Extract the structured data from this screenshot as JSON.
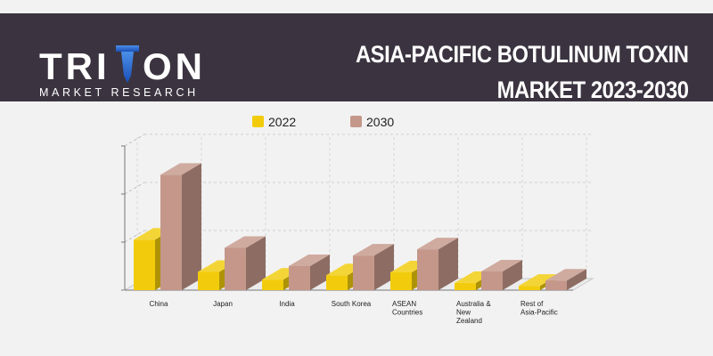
{
  "header": {
    "logo_top": "TRITON",
    "logo_bottom": "MARKET RESEARCH",
    "title_line1": "ASIA-PACIFIC BOTULINUM TOXIN",
    "title_line2": "MARKET 2023-2030",
    "background": "#3b3440"
  },
  "chart_data": {
    "type": "bar",
    "style": "3d-clustered",
    "categories": [
      "China",
      "Japan",
      "India",
      "South Korea",
      "ASEAN Countries",
      "Australia & New Zealand",
      "Rest of Asia-Pacific"
    ],
    "category_lines": [
      [
        "China"
      ],
      [
        "Japan"
      ],
      [
        "India"
      ],
      [
        "South Korea"
      ],
      [
        "ASEAN",
        "Countries"
      ],
      [
        "Australia &",
        "New",
        "Zealand"
      ],
      [
        "Rest of",
        "Asia-Pacific"
      ]
    ],
    "series": [
      {
        "name": "2022",
        "color": "#f2cc0c",
        "values": [
          1.05,
          0.38,
          0.22,
          0.31,
          0.37,
          0.15,
          0.09
        ]
      },
      {
        "name": "2030",
        "color": "#c4978a",
        "values": [
          2.4,
          0.88,
          0.5,
          0.72,
          0.85,
          0.39,
          0.2
        ]
      }
    ],
    "ylim": [
      0,
      3
    ],
    "y_tick_labels_shown": false,
    "grid": true,
    "legend_position": "top"
  }
}
